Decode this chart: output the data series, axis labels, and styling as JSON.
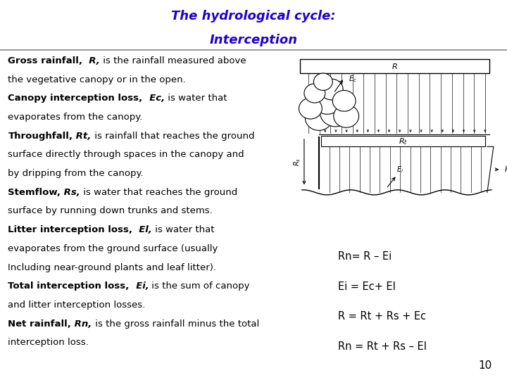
{
  "title_line1": "The hydrological cycle:",
  "title_line2": "Interception",
  "title_color": "#2200CC",
  "bg_color": "#FFFFFF",
  "content_bg": "#D8F4F8",
  "slide_number": "10",
  "equations": [
    "Rn= R – Ei",
    "Ei = Ec+ El",
    "R = Rt + Rs + Ec",
    "Rn = Rt + Rs – El"
  ],
  "divider_color": "#888888",
  "title_fontsize": 13,
  "text_fontsize": 9.5,
  "eq_fontsize": 10.5
}
